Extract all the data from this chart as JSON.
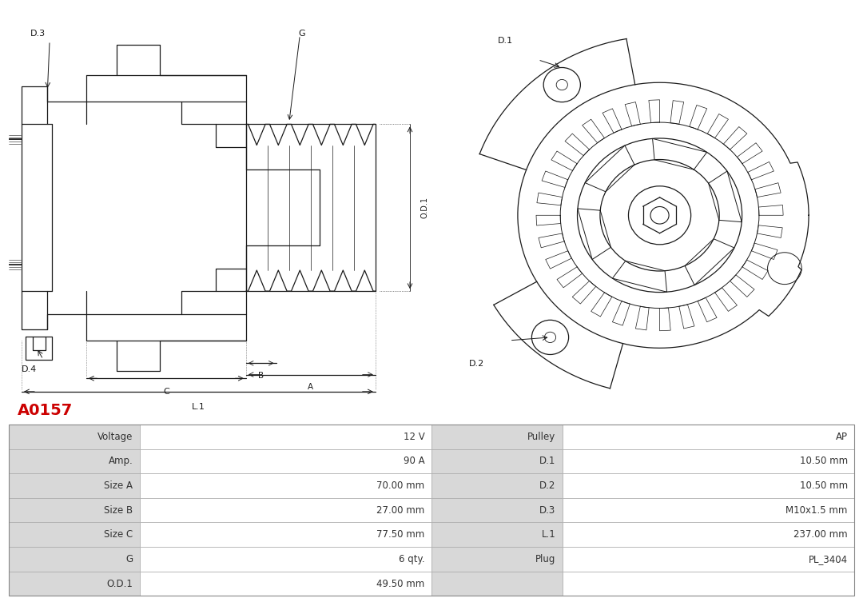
{
  "title": "A0157",
  "title_color": "#cc0000",
  "title_fontsize": 14,
  "bg_color": "#ffffff",
  "line_color": "#1a1a1a",
  "table_rows": [
    [
      "Voltage",
      "12 V",
      "Pulley",
      "AP"
    ],
    [
      "Amp.",
      "90 A",
      "D.1",
      "10.50 mm"
    ],
    [
      "Size A",
      "70.00 mm",
      "D.2",
      "10.50 mm"
    ],
    [
      "Size B",
      "27.00 mm",
      "D.3",
      "M10x1.5 mm"
    ],
    [
      "Size C",
      "77.50 mm",
      "L.1",
      "237.00 mm"
    ],
    [
      "G",
      "6 qty.",
      "Plug",
      "PL_3404"
    ],
    [
      "O.D.1",
      "49.50 mm",
      "",
      ""
    ]
  ],
  "label_bg": "#d8d8d8",
  "value_bg": "#ffffff",
  "cell_fontsize": 8.5,
  "cell_text_color": "#333333",
  "border_color": "#aaaaaa"
}
